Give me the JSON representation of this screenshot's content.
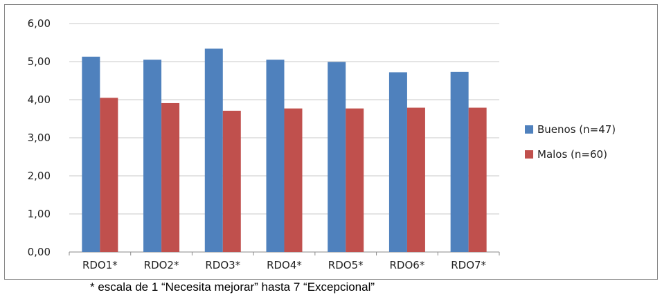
{
  "chart_data": {
    "type": "bar",
    "categories": [
      "RDO1*",
      "RDO2*",
      "RDO3*",
      "RDO4*",
      "RDO5*",
      "RDO6*",
      "RDO7*"
    ],
    "series": [
      {
        "name": "Buenos (n=47)",
        "color": "#4f81bd",
        "values": [
          5.13,
          5.05,
          5.34,
          5.05,
          4.99,
          4.72,
          4.73
        ]
      },
      {
        "name": "Malos (n=60)",
        "color": "#c0504d",
        "values": [
          4.05,
          3.91,
          3.71,
          3.77,
          3.77,
          3.79,
          3.79
        ]
      }
    ],
    "ylim": [
      0,
      6
    ],
    "yticks": [
      "0,00",
      "1,00",
      "2,00",
      "3,00",
      "4,00",
      "5,00",
      "6,00"
    ],
    "grid": true,
    "legend_position": "right"
  },
  "footnote": "* escala de 1 “Necesita mejorar” hasta 7 “Excepcional”"
}
